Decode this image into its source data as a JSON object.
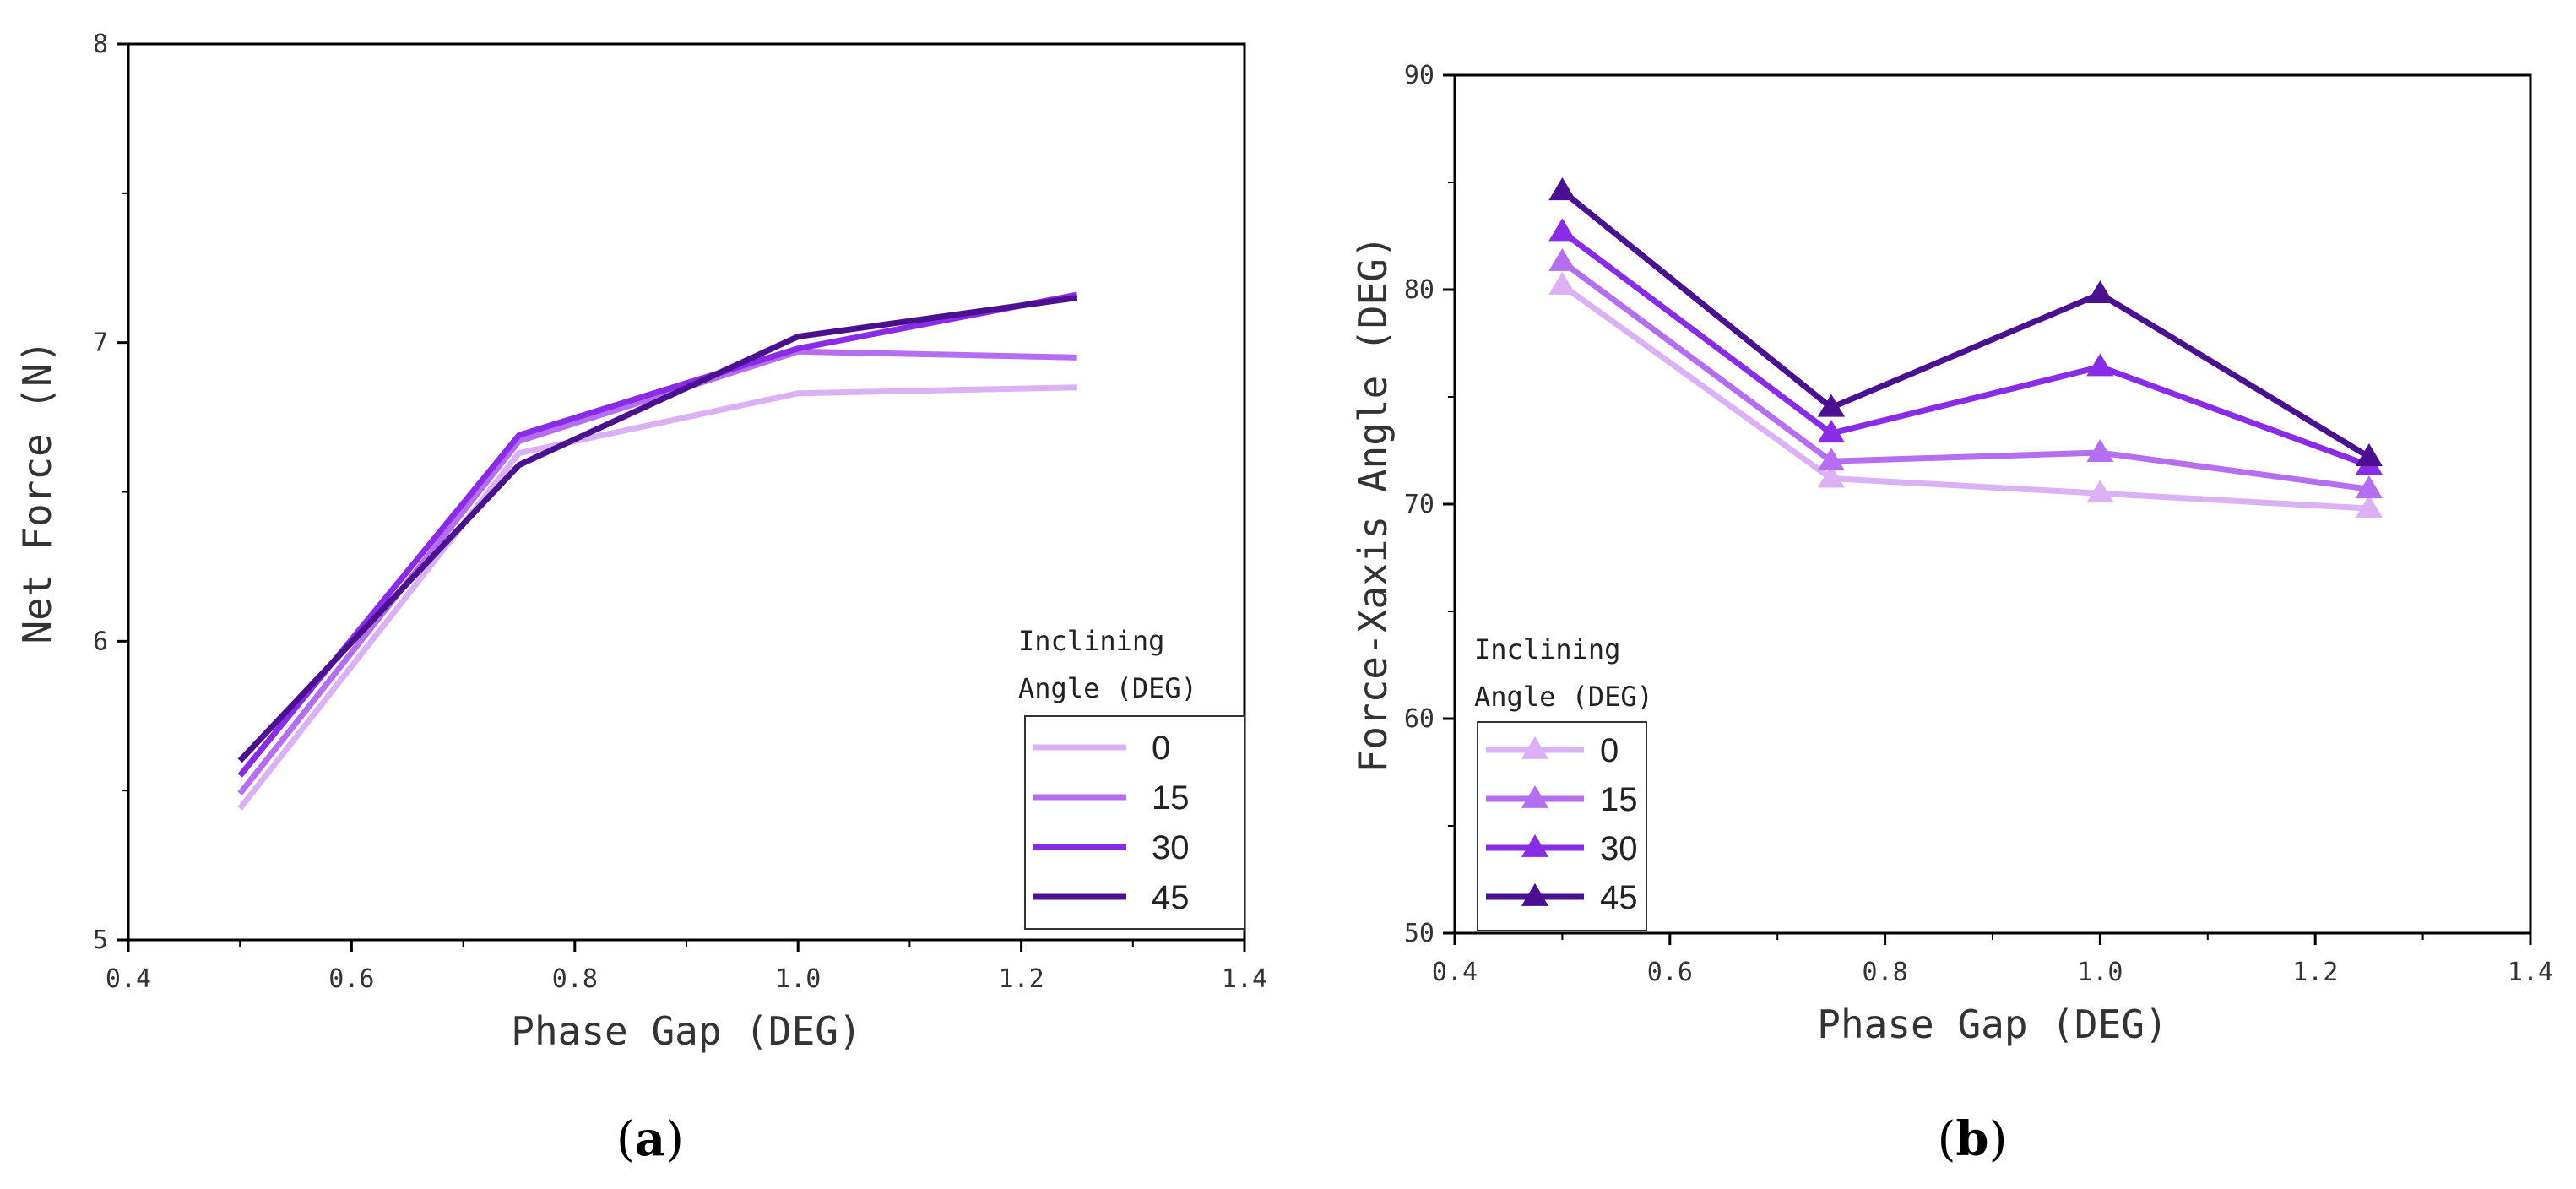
{
  "chart_data": [
    {
      "type": "line",
      "panel_label": "a",
      "xlabel": "Phase Gap (DEG)",
      "ylabel": "Net Force (N)",
      "xlim": [
        0.4,
        1.4
      ],
      "ylim": [
        5,
        8
      ],
      "xticks": [
        0.4,
        0.6,
        0.8,
        1.0,
        1.2,
        1.4
      ],
      "xtick_labels": [
        "0.4",
        "0.6",
        "0.8",
        "1.0",
        "1.2",
        "1.4"
      ],
      "yticks": [
        5,
        6,
        7,
        8
      ],
      "ytick_labels": [
        "5",
        "6",
        "7",
        "8"
      ],
      "x": [
        0.5,
        0.75,
        1.0,
        1.25
      ],
      "markers": false,
      "legend": {
        "title_line1": "Inclining",
        "title_line2": "Angle (DEG)",
        "placement": "bottom-right"
      },
      "series": [
        {
          "name": "0",
          "color": "#dcb0f5",
          "values": [
            5.44,
            6.63,
            6.83,
            6.85
          ]
        },
        {
          "name": "15",
          "color": "#b66ef0",
          "values": [
            5.49,
            6.67,
            6.97,
            6.95
          ]
        },
        {
          "name": "30",
          "color": "#8a2be8",
          "values": [
            5.55,
            6.69,
            6.98,
            7.16
          ]
        },
        {
          "name": "45",
          "color": "#4a1090",
          "values": [
            5.6,
            6.59,
            7.02,
            7.15
          ]
        }
      ]
    },
    {
      "type": "line",
      "panel_label": "b",
      "xlabel": "Phase Gap (DEG)",
      "ylabel": "Force-Xaxis Angle (DEG)",
      "xlim": [
        0.4,
        1.4
      ],
      "ylim": [
        50,
        90
      ],
      "xticks": [
        0.4,
        0.6,
        0.8,
        1.0,
        1.2,
        1.4
      ],
      "xtick_labels": [
        "0.4",
        "0.6",
        "0.8",
        "1.0",
        "1.2",
        "1.4"
      ],
      "yticks": [
        50,
        60,
        70,
        80,
        90
      ],
      "ytick_labels": [
        "50",
        "60",
        "70",
        "80",
        "90"
      ],
      "x": [
        0.5,
        0.75,
        1.0,
        1.25
      ],
      "markers": true,
      "marker": "triangle",
      "legend": {
        "title_line1": "Inclining",
        "title_line2": "Angle (DEG)",
        "placement": "bottom-left"
      },
      "series": [
        {
          "name": "0",
          "color": "#dcb0f5",
          "values": [
            80.2,
            71.2,
            70.5,
            69.8
          ]
        },
        {
          "name": "15",
          "color": "#b66ef0",
          "values": [
            81.3,
            72.0,
            72.4,
            70.7
          ]
        },
        {
          "name": "30",
          "color": "#8a2be8",
          "values": [
            82.7,
            73.3,
            76.4,
            71.8
          ]
        },
        {
          "name": "45",
          "color": "#4a1090",
          "values": [
            84.6,
            74.5,
            79.8,
            72.2
          ]
        }
      ]
    }
  ]
}
